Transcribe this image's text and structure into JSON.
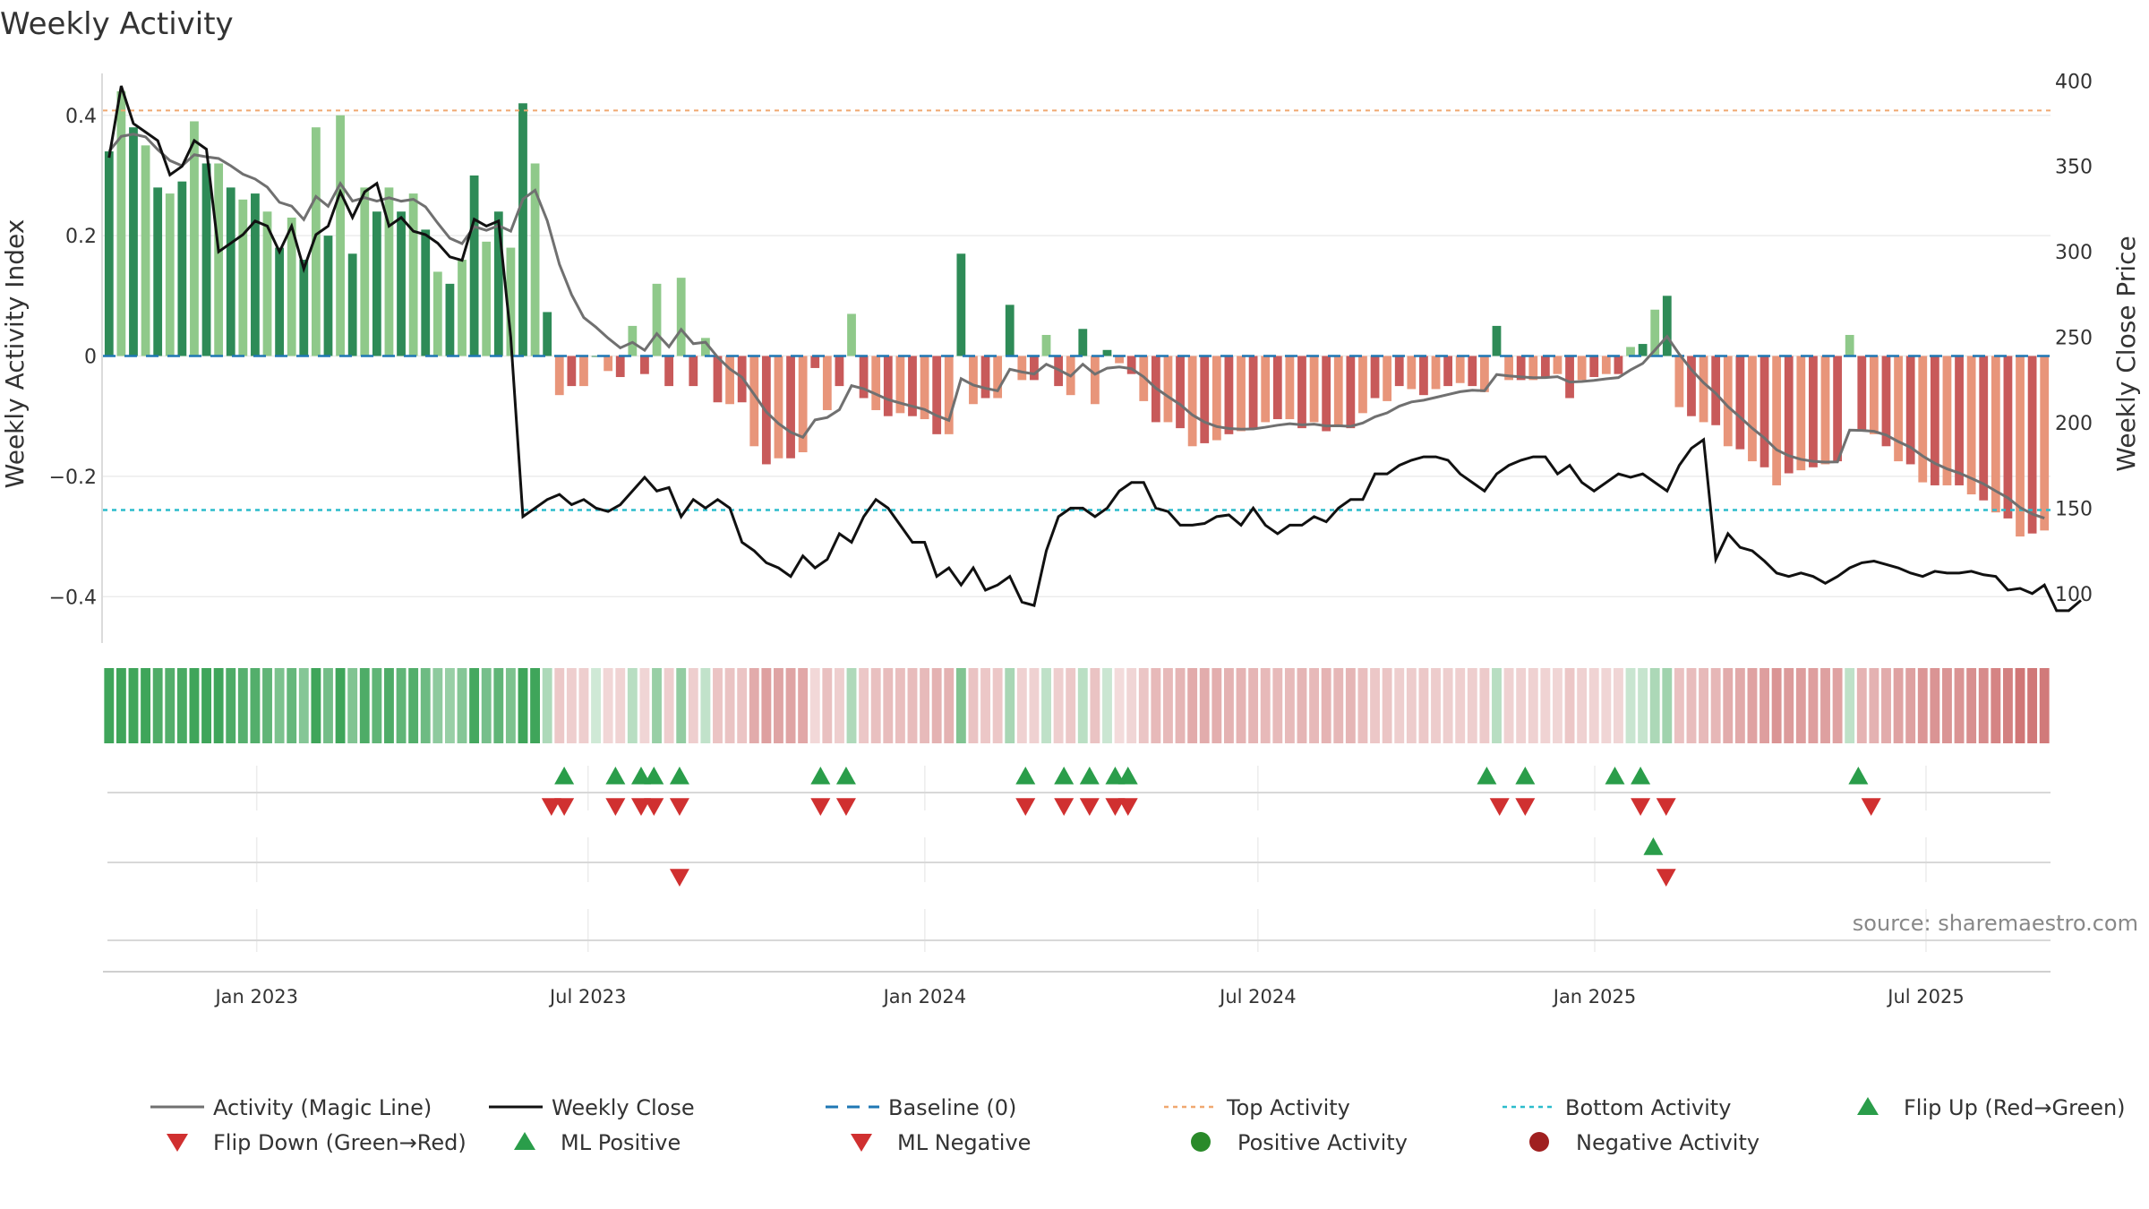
{
  "chart_data": {
    "type": "bar",
    "title": "Weekly Activity",
    "ylabel_left": "Weekly Activity Index",
    "ylabel_right": "Weekly Close Price",
    "ylim_left": [
      -0.48,
      0.48
    ],
    "ylim_right": [
      70,
      408
    ],
    "yticks_left": [
      {
        "value": 0.4,
        "label": "0.4"
      },
      {
        "value": 0.2,
        "label": "0.2"
      },
      {
        "value": 0,
        "label": "0"
      },
      {
        "value": -0.2,
        "label": "−0.2"
      },
      {
        "value": -0.4,
        "label": "−0.4"
      }
    ],
    "yticks_right": [
      {
        "value": 400,
        "label": "400"
      },
      {
        "value": 350,
        "label": "350"
      },
      {
        "value": 300,
        "label": "300"
      },
      {
        "value": 250,
        "label": "250"
      },
      {
        "value": 200,
        "label": "200"
      },
      {
        "value": 150,
        "label": "150"
      },
      {
        "value": 100,
        "label": "100"
      }
    ],
    "top_activity": 0.408,
    "bottom_activity": -0.256,
    "x_start": "2022-10-09",
    "x_end": "2025-09-07",
    "date_ticks": [
      {
        "date": "2023-01-01",
        "label": "Jan 2023"
      },
      {
        "date": "2023-07-01",
        "label": "Jul 2023"
      },
      {
        "date": "2024-01-01",
        "label": "Jan 2024"
      },
      {
        "date": "2024-07-01",
        "label": "Jul 2024"
      },
      {
        "date": "2025-01-01",
        "label": "Jan 2025"
      },
      {
        "date": "2025-07-01",
        "label": "Jul 2025"
      }
    ],
    "activity_index": [
      0.34,
      0.44,
      0.38,
      0.35,
      0.28,
      0.27,
      0.29,
      0.39,
      0.32,
      0.32,
      0.28,
      0.26,
      0.27,
      0.24,
      0.18,
      0.23,
      0.16,
      0.38,
      0.2,
      0.4,
      0.17,
      0.28,
      0.24,
      0.28,
      0.24,
      0.27,
      0.21,
      0.14,
      0.12,
      0.16,
      0.3,
      0.19,
      0.24,
      0.18,
      0.42,
      0.32,
      0.073,
      -0.065,
      -0.05,
      -0.05,
      0,
      -0.025,
      -0.035,
      0.05,
      -0.03,
      0.12,
      -0.05,
      0.13,
      -0.05,
      0.03,
      -0.077,
      -0.08,
      -0.077,
      -0.15,
      -0.18,
      -0.17,
      -0.17,
      -0.16,
      -0.02,
      -0.09,
      -0.05,
      0.07,
      -0.07,
      -0.09,
      -0.1,
      -0.095,
      -0.1,
      -0.105,
      -0.13,
      -0.13,
      0.17,
      -0.08,
      -0.07,
      -0.07,
      0.085,
      -0.04,
      -0.04,
      0.035,
      -0.05,
      -0.065,
      0.045,
      -0.08,
      0.01,
      -0.012,
      -0.03,
      -0.075,
      -0.11,
      -0.11,
      -0.12,
      -0.15,
      -0.145,
      -0.14,
      -0.13,
      -0.125,
      -0.12,
      -0.11,
      -0.105,
      -0.105,
      -0.12,
      -0.11,
      -0.125,
      -0.115,
      -0.12,
      -0.095,
      -0.07,
      -0.075,
      -0.05,
      -0.055,
      -0.065,
      -0.055,
      -0.05,
      -0.045,
      -0.05,
      -0.06,
      0.05,
      -0.04,
      -0.04,
      -0.04,
      -0.035,
      -0.03,
      -0.07,
      -0.04,
      -0.035,
      -0.03,
      -0.03,
      0.015,
      0.02,
      0.077,
      0.1,
      -0.085,
      -0.1,
      -0.11,
      -0.115,
      -0.15,
      -0.155,
      -0.175,
      -0.185,
      -0.215,
      -0.195,
      -0.19,
      -0.185,
      -0.18,
      -0.175,
      0.035,
      -0.125,
      -0.13,
      -0.15,
      -0.175,
      -0.18,
      -0.21,
      -0.215,
      -0.215,
      -0.215,
      -0.23,
      -0.24,
      -0.26,
      -0.27,
      -0.3,
      -0.295,
      -0.29
    ],
    "weekly_close": [
      355,
      397,
      375,
      370,
      365,
      345,
      350,
      365,
      360,
      300,
      305,
      310,
      318,
      315,
      300,
      315,
      290,
      310,
      315,
      335,
      320,
      335,
      340,
      315,
      320,
      312,
      310,
      305,
      297,
      295,
      319,
      315,
      318,
      250,
      145,
      150,
      155,
      158,
      152,
      155,
      150,
      148,
      152,
      160,
      168,
      160,
      162,
      145,
      155,
      150,
      155,
      150,
      130,
      125,
      118,
      115,
      110,
      122,
      115,
      120,
      135,
      130,
      145,
      155,
      150,
      140,
      130,
      130,
      110,
      115,
      105,
      115,
      102,
      105,
      110,
      95,
      93,
      125,
      145,
      150,
      150,
      145,
      150,
      160,
      165,
      165,
      150,
      148,
      140,
      140,
      141,
      145,
      146,
      140,
      150,
      140,
      135,
      140,
      140,
      145,
      142,
      150,
      155,
      155,
      170,
      170,
      175,
      178,
      180,
      180,
      178,
      170,
      165,
      160,
      170,
      175,
      178,
      180,
      180,
      170,
      175,
      165,
      160,
      165,
      170,
      168,
      170,
      165,
      160,
      175,
      185,
      190,
      120,
      135,
      127,
      125,
      119,
      112,
      110,
      112,
      110,
      106,
      110,
      115,
      118,
      119,
      117,
      115,
      112,
      110,
      113,
      112,
      112,
      113,
      111,
      110,
      102,
      103,
      100,
      105,
      90,
      90,
      96
    ]
  },
  "source_text": "source: sharemaestro.com",
  "colors": {
    "pos_dark": "#2e8b57",
    "pos_light": "#8fc98a",
    "neg_dark": "#c85a5a",
    "neg_light": "#e8957a",
    "magic_line": "#707070",
    "close_line": "#111111",
    "baseline": "#1f77b4",
    "top_line": "#f0a870",
    "bottom_line": "#2bbccc",
    "up_marker": "#2a9d4a",
    "down_marker": "#d03030",
    "positive_dot": "#2a8a2a",
    "negative_dot": "#a02020"
  },
  "signals": {
    "flip_up_dates": [
      "2023-06-18",
      "2023-07-16",
      "2023-07-30",
      "2023-08-06",
      "2023-08-20",
      "2023-11-05",
      "2023-11-19",
      "2024-02-25",
      "2024-03-17",
      "2024-03-31",
      "2024-04-14",
      "2024-04-21",
      "2024-11-03",
      "2024-11-24",
      "2025-01-12",
      "2025-01-26",
      "2025-05-25"
    ],
    "flip_down_dates": [
      "2023-06-11",
      "2023-06-18",
      "2023-07-16",
      "2023-07-30",
      "2023-08-06",
      "2023-08-20",
      "2023-11-05",
      "2023-11-19",
      "2024-02-25",
      "2024-03-17",
      "2024-03-31",
      "2024-04-14",
      "2024-04-21",
      "2024-11-10",
      "2024-11-24",
      "2025-01-26",
      "2025-02-09",
      "2025-06-01"
    ],
    "ml_positive_dates": [
      "2025-02-02"
    ],
    "ml_negative_dates": [
      "2023-08-20",
      "2025-02-09"
    ]
  },
  "legend": [
    {
      "key": "magic",
      "label": "Activity (Magic Line)"
    },
    {
      "key": "close",
      "label": "Weekly Close"
    },
    {
      "key": "baseline",
      "label": "Baseline (0)"
    },
    {
      "key": "top",
      "label": "Top Activity"
    },
    {
      "key": "bottom",
      "label": "Bottom Activity"
    },
    {
      "key": "flipup",
      "label": "Flip Up (Red→Green)"
    },
    {
      "key": "flipdown",
      "label": "Flip Down (Green→Red)"
    },
    {
      "key": "mlpos",
      "label": "ML Positive"
    },
    {
      "key": "mlneg",
      "label": "ML Negative"
    },
    {
      "key": "posact",
      "label": "Positive Activity"
    },
    {
      "key": "negact",
      "label": "Negative Activity"
    }
  ]
}
